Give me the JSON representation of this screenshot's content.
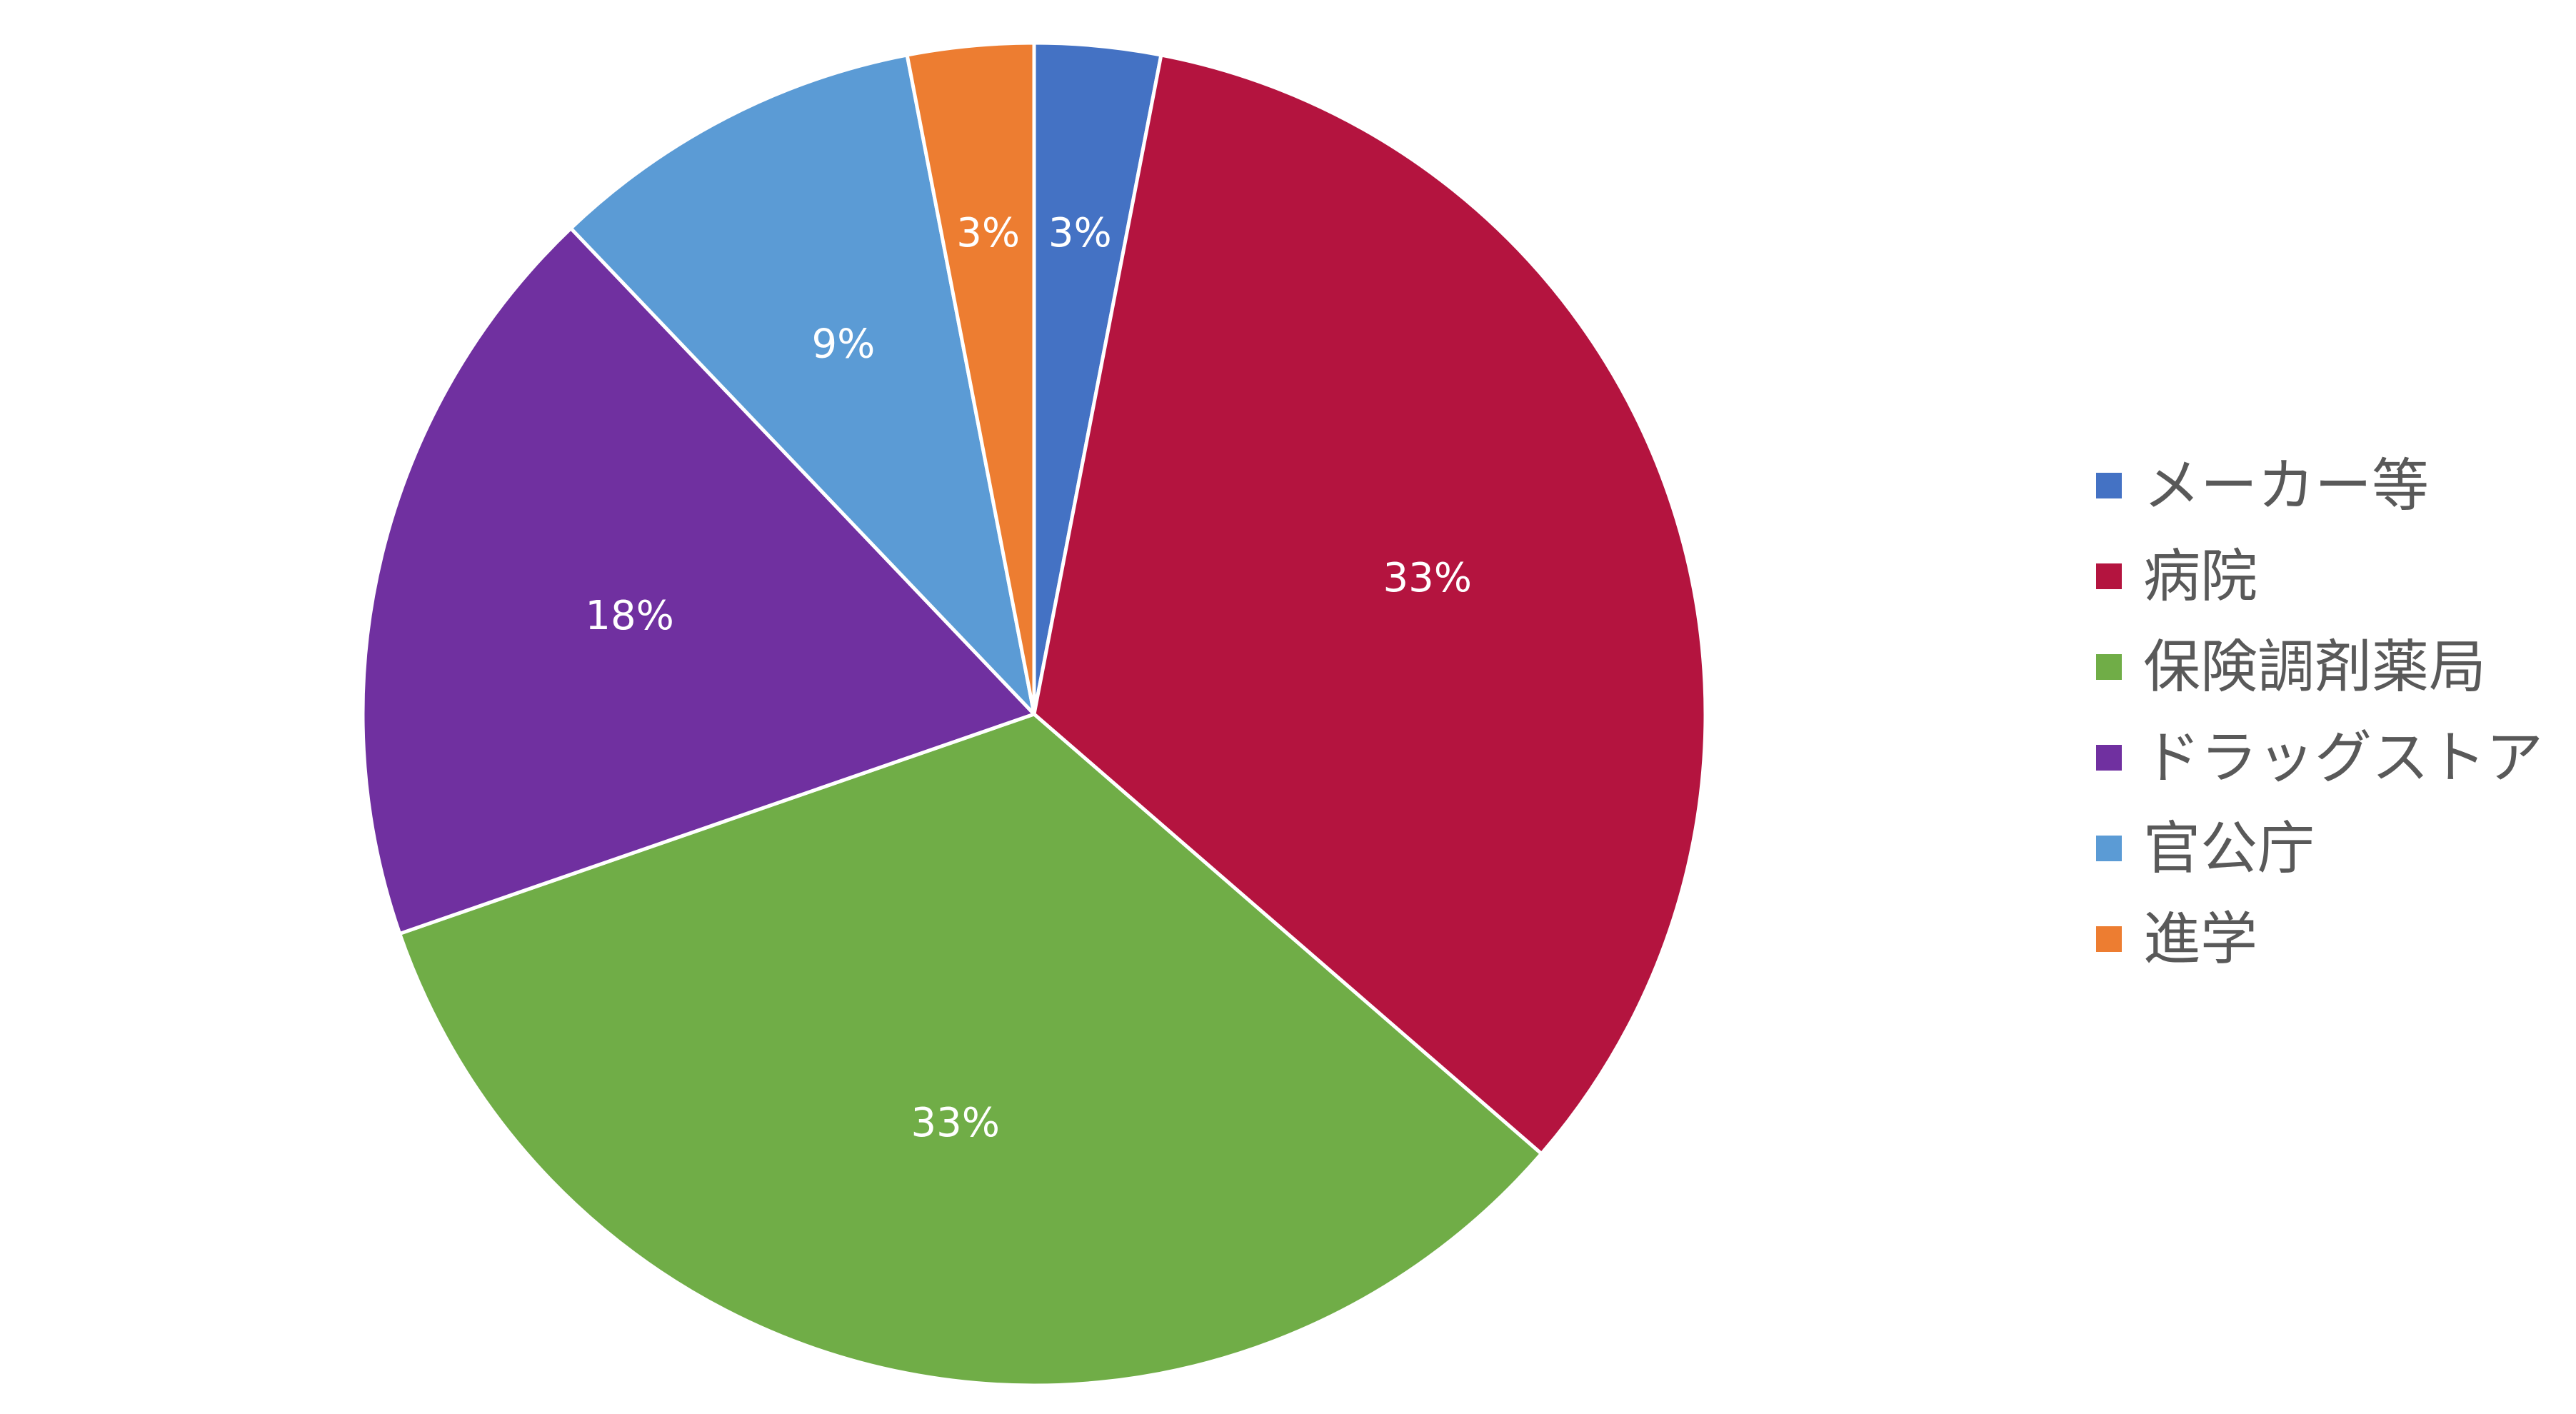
{
  "chart_data": {
    "type": "pie",
    "legend_position": "right",
    "start_angle_deg": 0,
    "direction": "clockwise",
    "slices": [
      {
        "label": "メーカー等",
        "value": 3,
        "data_label": "3%",
        "color": "#4472C4"
      },
      {
        "label": "病院",
        "value": 33,
        "data_label": "33%",
        "color": "#B4143F"
      },
      {
        "label": "保険調剤薬局",
        "value": 33,
        "data_label": "33%",
        "color": "#70AD47"
      },
      {
        "label": "ドラッグストア",
        "value": 18,
        "data_label": "18%",
        "color": "#7030A0"
      },
      {
        "label": "官公庁",
        "value": 9,
        "data_label": "9%",
        "color": "#5B9BD5"
      },
      {
        "label": "進学",
        "value": 3,
        "data_label": "3%",
        "color": "#ED7D31"
      }
    ]
  }
}
